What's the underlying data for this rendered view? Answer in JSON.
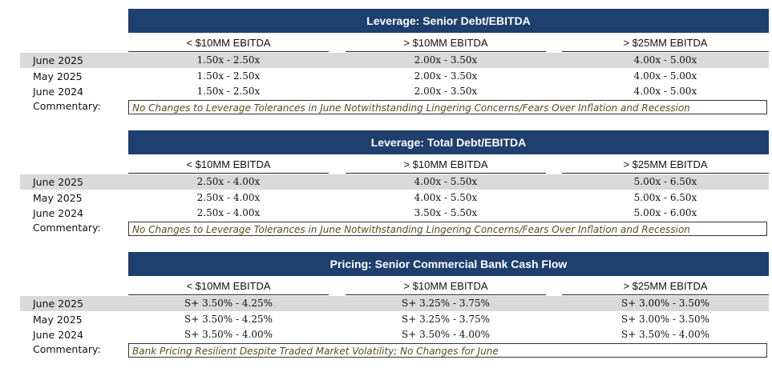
{
  "sections": [
    {
      "title": "Leverage: Senior Debt/EBITDA",
      "columns": [
        "< $10MM EBITDA",
        "> $10MM EBITDA",
        "> $25MM EBITDA"
      ],
      "rows": [
        {
          "label": "June 2025",
          "values": [
            "1.50x - 2.50x",
            "2.00x - 3.50x",
            "4.00x - 5.00x"
          ]
        },
        {
          "label": "May 2025",
          "values": [
            "1.50x - 2.50x",
            "2.00x - 3.50x",
            "4.00x - 5.00x"
          ]
        },
        {
          "label": "June 2024",
          "values": [
            "1.50x - 2.50x",
            "2.00x - 3.50x",
            "4.00x - 5.00x"
          ]
        }
      ],
      "commentary_label": "Commentary:",
      "commentary": "No Changes to Leverage Tolerances in June Notwithstanding Lingering Concerns/Fears Over Inflation and Recession"
    },
    {
      "title": "Leverage: Total Debt/EBITDA",
      "columns": [
        "< $10MM EBITDA",
        "> $10MM EBITDA",
        "> $25MM EBITDA"
      ],
      "rows": [
        {
          "label": "June 2025",
          "values": [
            "2.50x - 4.00x",
            "4.00x - 5.50x",
            "5.00x - 6.50x"
          ]
        },
        {
          "label": "May 2025",
          "values": [
            "2.50x - 4.00x",
            "4.00x - 5.50x",
            "5.00x - 6.50x"
          ]
        },
        {
          "label": "June 2024",
          "values": [
            "2.50x - 4.00x",
            "3.50x - 5.50x",
            "5.00x - 6.00x"
          ]
        }
      ],
      "commentary_label": "Commentary:",
      "commentary": "No Changes to Leverage Tolerances in June Notwithstanding Lingering Concerns/Fears Over Inflation and Recession"
    },
    {
      "title": "Pricing: Senior Commercial Bank Cash Flow",
      "columns": [
        "< $10MM EBITDA",
        "> $10MM EBITDA",
        "> $25MM EBITDA"
      ],
      "rows": [
        {
          "label": "June 2025",
          "values": [
            "S+ 3.50% - 4.25%",
            "S+ 3.25% - 3.75%",
            "S+ 3.00% - 3.50%"
          ]
        },
        {
          "label": "May 2025",
          "values": [
            "S+ 3.50% - 4.25%",
            "S+ 3.25% - 3.75%",
            "S+ 3.00% - 3.50%"
          ]
        },
        {
          "label": "June 2024",
          "values": [
            "S+ 3.50% - 4.00%",
            "S+ 3.50% - 4.00%",
            "S+ 3.50% - 4.00%"
          ]
        }
      ],
      "commentary_label": "Commentary:",
      "commentary": "Bank Pricing Resilient Despite Traded Market Volatility; No Changes for June"
    }
  ]
}
